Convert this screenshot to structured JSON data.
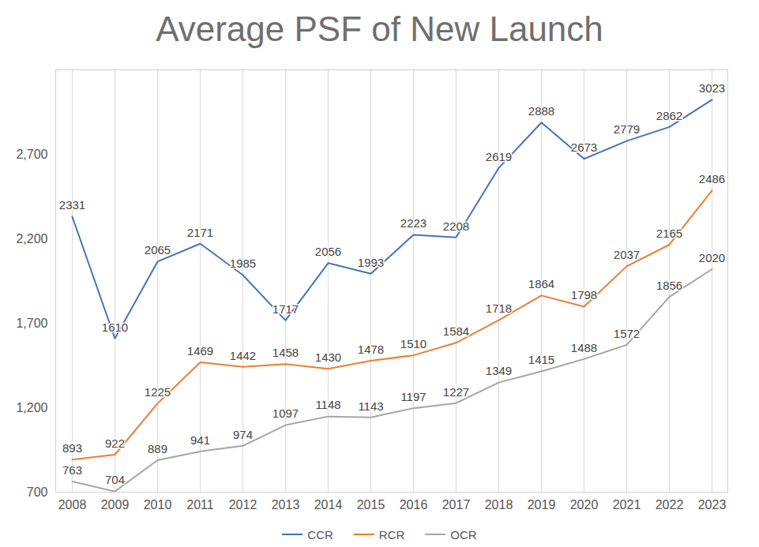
{
  "chart_data": {
    "type": "line",
    "title": "Average PSF of New Launch",
    "categories": [
      "2008",
      "2009",
      "2010",
      "2011",
      "2012",
      "2013",
      "2014",
      "2015",
      "2016",
      "2017",
      "2018",
      "2019",
      "2020",
      "2021",
      "2022",
      "2023"
    ],
    "series": [
      {
        "name": "CCR",
        "color": "#4472c4",
        "values": [
          2331,
          1610,
          2065,
          2171,
          1985,
          1717,
          2056,
          1993,
          2223,
          2208,
          2619,
          2888,
          2673,
          2779,
          2862,
          3023
        ]
      },
      {
        "name": "RCR",
        "color": "#ed7d31",
        "values": [
          893,
          922,
          1225,
          1469,
          1442,
          1458,
          1430,
          1478,
          1510,
          1584,
          1718,
          1864,
          1798,
          2037,
          2165,
          2486
        ]
      },
      {
        "name": "OCR",
        "color": "#a5a5a5",
        "values": [
          763,
          704,
          889,
          941,
          974,
          1097,
          1148,
          1143,
          1197,
          1227,
          1349,
          1415,
          1488,
          1572,
          1856,
          2020
        ]
      }
    ],
    "ylim": [
      700,
      3200
    ],
    "yticks": [
      700,
      1200,
      1700,
      2200,
      2700
    ],
    "grid": true,
    "legend": "bottom",
    "data_labels": true
  }
}
